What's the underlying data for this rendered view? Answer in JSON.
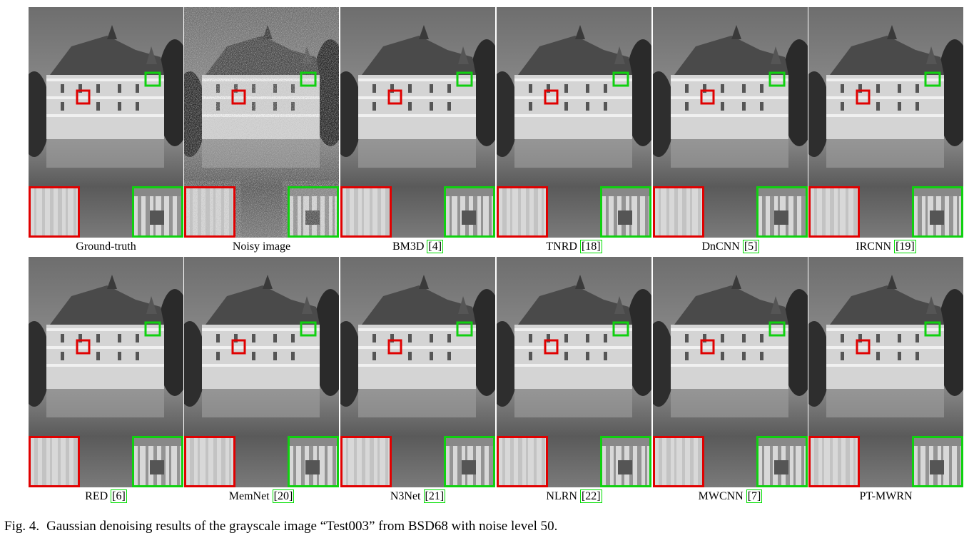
{
  "panels": [
    {
      "label": "Ground-truth"
    },
    {
      "label": "Noisy image"
    },
    {
      "label": "BM3D",
      "ref": "[4]"
    },
    {
      "label": "TNRD",
      "ref": "[18]"
    },
    {
      "label": "DnCNN",
      "ref": "[5]"
    },
    {
      "label": "IRCNN",
      "ref": "[19]"
    },
    {
      "label": "RED",
      "ref": "[6]"
    },
    {
      "label": "MemNet",
      "ref": "[20]"
    },
    {
      "label": "N3Net",
      "ref": "[21]"
    },
    {
      "label": "NLRN",
      "ref": "[22]"
    },
    {
      "label": "MWCNN",
      "ref": "[7]"
    },
    {
      "label": "PT-MWRN"
    }
  ],
  "caption": {
    "label": "Fig. 4.",
    "text": "Gaussian denoising results of the grayscale image “Test003” from BSD68 with noise level 50."
  }
}
